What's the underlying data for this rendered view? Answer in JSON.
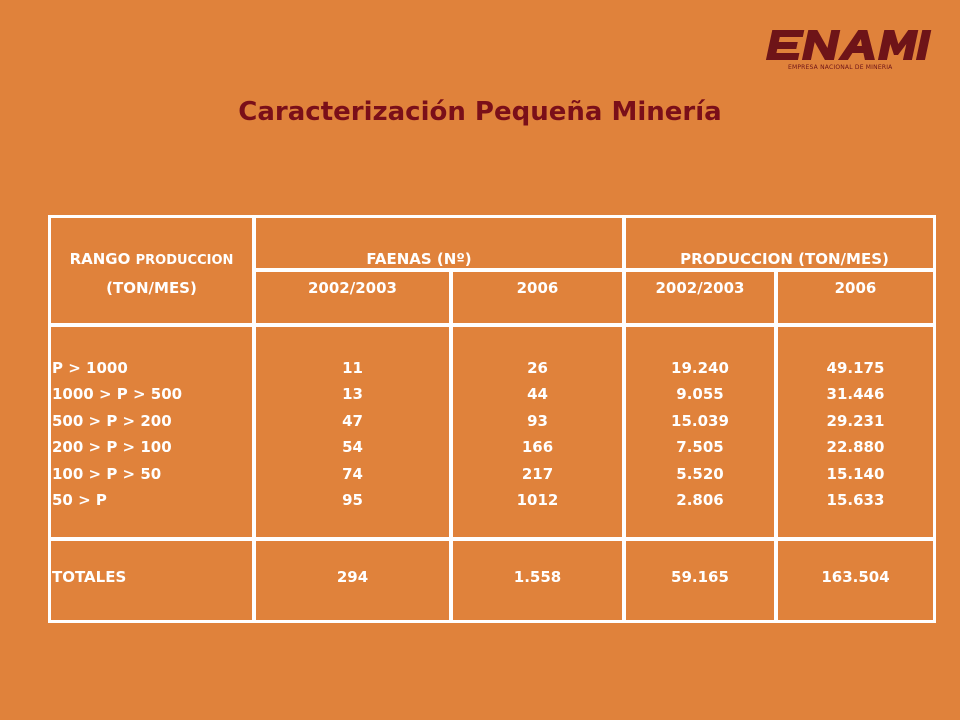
{
  "logo": {
    "wordmark": "ENAMI",
    "tagline": "EMPRESA NACIONAL DE MINERIA"
  },
  "title": "Caracterización Pequeña Minería",
  "table": {
    "header": {
      "range_line1_a": "RANGO",
      "range_line1_b": "PRODUCCION",
      "range_line2": "(TON/MES)",
      "faenas": "FAENAS (Nº)",
      "produccion": "PRODUCCION (TON/MES)",
      "periods": [
        "2002/2003",
        "2006",
        "2002/2003",
        "2006"
      ]
    },
    "rows": [
      {
        "range": "P > 1000",
        "faenas_2002": "11",
        "faenas_2006": "26",
        "prod_2002": "19.240",
        "prod_2006": "49.175"
      },
      {
        "range": "1000 > P > 500",
        "faenas_2002": "13",
        "faenas_2006": "44",
        "prod_2002": "9.055",
        "prod_2006": "31.446"
      },
      {
        "range": "500 > P > 200",
        "faenas_2002": "47",
        "faenas_2006": "93",
        "prod_2002": "15.039",
        "prod_2006": "29.231"
      },
      {
        "range": "200 > P > 100",
        "faenas_2002": "54",
        "faenas_2006": "166",
        "prod_2002": "7.505",
        "prod_2006": "22.880"
      },
      {
        "range": "100 > P > 50",
        "faenas_2002": "74",
        "faenas_2006": "217",
        "prod_2002": "5.520",
        "prod_2006": "15.140"
      },
      {
        "range": "50 > P",
        "faenas_2002": "95",
        "faenas_2006": "1012",
        "prod_2002": "2.806",
        "prod_2006": "15.633"
      }
    ],
    "totals": {
      "label": "TOTALES",
      "faenas_2002": "294",
      "faenas_2006": "1.558",
      "prod_2002": "59.165",
      "prod_2006": "163.504"
    }
  },
  "colors": {
    "background": "#e0823b",
    "title": "#7a0f19",
    "logo": "#6e1418",
    "grid": "#ffffff",
    "text": "#ffffff"
  }
}
